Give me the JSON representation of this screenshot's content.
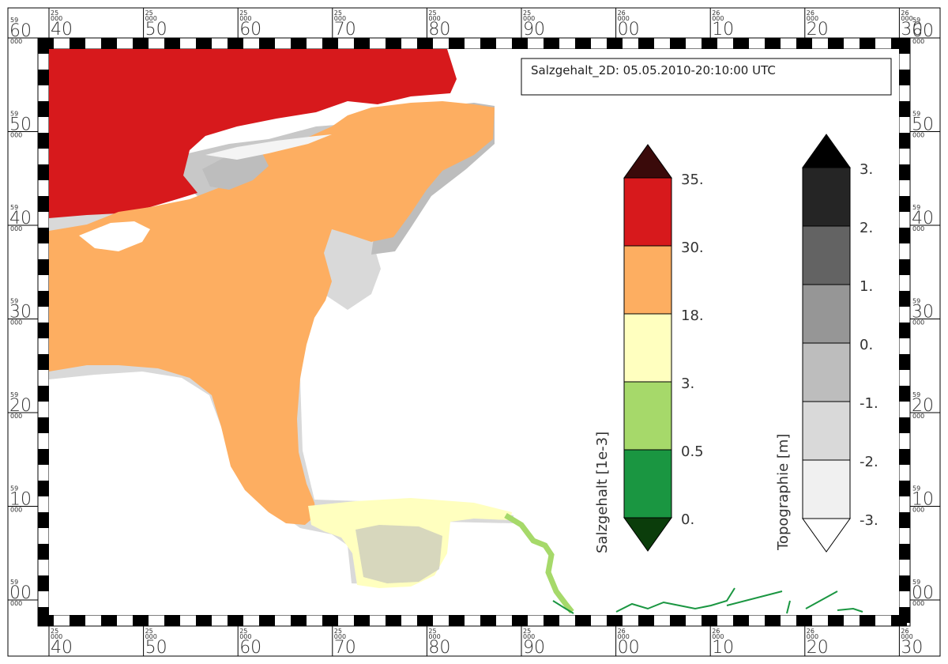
{
  "title": "Salzgehalt_2D: 05.05.2010-20:10:00 UTC",
  "frame": {
    "top_labels": [
      {
        "sup": "25",
        "num": "40"
      },
      {
        "sup": "25",
        "num": "50"
      },
      {
        "sup": "25",
        "num": "60"
      },
      {
        "sup": "25",
        "num": "70"
      },
      {
        "sup": "25",
        "num": "80"
      },
      {
        "sup": "25",
        "num": "90"
      },
      {
        "sup": "26",
        "num": "00"
      },
      {
        "sup": "26",
        "num": "10"
      },
      {
        "sup": "26",
        "num": "20"
      },
      {
        "sup": "26",
        "num": "30"
      }
    ],
    "left_labels": [
      {
        "sup": "59",
        "num": "60"
      },
      {
        "sup": "59",
        "num": "50"
      },
      {
        "sup": "59",
        "num": "40"
      },
      {
        "sup": "59",
        "num": "30"
      },
      {
        "sup": "59",
        "num": "20"
      },
      {
        "sup": "59",
        "num": "10"
      },
      {
        "sup": "59",
        "num": "00"
      }
    ],
    "sub_mark": "000"
  },
  "salinity_legend": {
    "title": "Salzgehalt [1e-3]",
    "labels": [
      "35.",
      "30.",
      "18.",
      "3.",
      "0.5",
      "0."
    ],
    "colors": {
      "top_arrow": "#3a0a0a",
      "band_30_35": "#d7191c",
      "band_18_30": "#fdae61",
      "band_3_18": "#ffffbf",
      "band_05_3": "#a6d96a",
      "band_0_05": "#1a9641",
      "bottom_arrow": "#0b3d0b"
    }
  },
  "topo_legend": {
    "title": "Topographie [m]",
    "labels": [
      "3.",
      "2.",
      "1.",
      "0.",
      "-1.",
      "-2.",
      "-3."
    ],
    "colors": {
      "top_arrow": "#000000",
      "band_2_3": "#252525",
      "band_1_2": "#636363",
      "band_0_1": "#969696",
      "band_m1_0": "#bdbdbd",
      "band_m2_m1": "#d9d9d9",
      "band_m3_m2": "#f0f0f0",
      "bottom_arrow": "#ffffff"
    }
  }
}
